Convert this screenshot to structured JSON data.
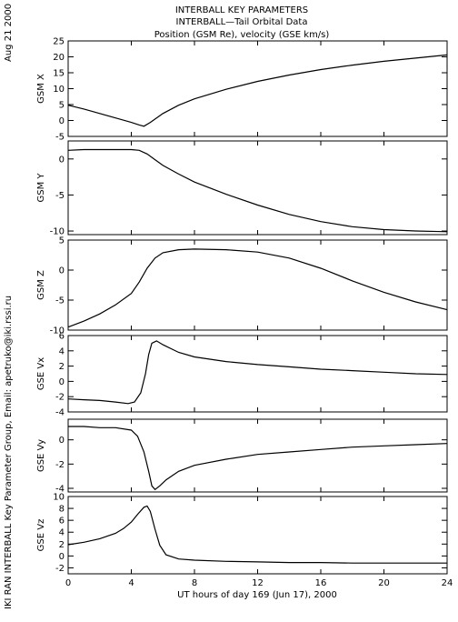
{
  "header": {
    "date_label": "Aug 21 2000",
    "title_line1": "INTERBALL KEY PARAMETERS",
    "title_line2": "INTERBALL—Tail Orbital Data",
    "title_line3": "Position (GSM Re), velocity (GSE km/s)"
  },
  "side_credit": "IKI RAN INTERBALL Key Parameter Group, Email: apetruko@iki.rssi.ru",
  "x_axis": {
    "label": "UT hours of day 169 (Jun 17), 2000",
    "range": [
      0,
      24
    ],
    "ticks": [
      0,
      4,
      8,
      12,
      16,
      20,
      24
    ],
    "tick_labels": [
      "0",
      "4",
      "8",
      "12",
      "16",
      "20",
      "24"
    ]
  },
  "chart_data": [
    {
      "type": "line",
      "ylabel": "GSM X",
      "ylim": [
        -5,
        25
      ],
      "yticks": [
        -5,
        0,
        5,
        10,
        15,
        20,
        25
      ],
      "ytick_labels": [
        "-5",
        "0",
        "5",
        "10",
        "15",
        "20",
        "25"
      ],
      "x": [
        0,
        1,
        2,
        3,
        4,
        4.5,
        4.8,
        5.2,
        6,
        7,
        8,
        10,
        12,
        14,
        16,
        18,
        20,
        22,
        24
      ],
      "values": [
        4.8,
        3.6,
        2.2,
        0.8,
        -0.6,
        -1.4,
        -1.8,
        -0.6,
        2.2,
        4.8,
        6.8,
        9.8,
        12.3,
        14.3,
        16.0,
        17.4,
        18.6,
        19.6,
        20.6
      ]
    },
    {
      "type": "line",
      "ylabel": "GSM Y",
      "ylim": [
        -10.5,
        2.5
      ],
      "yticks": [
        -10,
        -5,
        0
      ],
      "ytick_labels": [
        "-10",
        "-5",
        "0"
      ],
      "x": [
        0,
        1,
        2,
        3,
        4,
        4.5,
        5.0,
        5.5,
        6,
        7,
        8,
        10,
        12,
        14,
        16,
        18,
        20,
        22,
        24
      ],
      "values": [
        1.2,
        1.3,
        1.3,
        1.3,
        1.3,
        1.2,
        0.7,
        -0.1,
        -0.9,
        -2.1,
        -3.2,
        -4.9,
        -6.4,
        -7.7,
        -8.7,
        -9.4,
        -9.8,
        -10.0,
        -10.1
      ]
    },
    {
      "type": "line",
      "ylabel": "GSM Z",
      "ylim": [
        -10,
        5
      ],
      "yticks": [
        -10,
        -5,
        0,
        5
      ],
      "ytick_labels": [
        "-10",
        "-5",
        "0",
        "5"
      ],
      "x": [
        0,
        1,
        2,
        3,
        4,
        4.5,
        5,
        5.5,
        6,
        7,
        8,
        10,
        12,
        14,
        16,
        18,
        20,
        22,
        24
      ],
      "values": [
        -9.5,
        -8.5,
        -7.3,
        -5.8,
        -3.9,
        -2.0,
        0.3,
        2.0,
        2.9,
        3.4,
        3.5,
        3.4,
        3.0,
        2.0,
        0.3,
        -1.8,
        -3.7,
        -5.3,
        -6.6
      ]
    },
    {
      "type": "line",
      "ylabel": "GSE Vx",
      "ylim": [
        -4,
        6
      ],
      "yticks": [
        -4,
        -2,
        0,
        2,
        4,
        6
      ],
      "ytick_labels": [
        "-4",
        "-2",
        "0",
        "2",
        "4",
        "6"
      ],
      "x": [
        0,
        1,
        2,
        3,
        3.8,
        4.2,
        4.6,
        4.9,
        5.1,
        5.3,
        5.6,
        6,
        7,
        8,
        10,
        12,
        14,
        16,
        18,
        20,
        22,
        24
      ],
      "values": [
        -2.3,
        -2.4,
        -2.5,
        -2.7,
        -2.9,
        -2.7,
        -1.5,
        1.0,
        3.5,
        5.0,
        5.3,
        4.8,
        3.8,
        3.2,
        2.6,
        2.2,
        1.9,
        1.6,
        1.4,
        1.2,
        1.0,
        0.9
      ]
    },
    {
      "type": "line",
      "ylabel": "GSE Vy",
      "ylim": [
        -4.3,
        1.7
      ],
      "yticks": [
        -4,
        -2,
        0
      ],
      "ytick_labels": [
        "-4",
        "-2",
        "0"
      ],
      "x": [
        0,
        1,
        2,
        3,
        4,
        4.4,
        4.8,
        5.1,
        5.3,
        5.5,
        5.8,
        6.2,
        7,
        8,
        10,
        12,
        14,
        16,
        18,
        20,
        22,
        24
      ],
      "values": [
        1.1,
        1.1,
        1.0,
        1.0,
        0.8,
        0.3,
        -1.0,
        -2.6,
        -3.8,
        -4.1,
        -3.8,
        -3.3,
        -2.6,
        -2.1,
        -1.6,
        -1.2,
        -1.0,
        -0.8,
        -0.6,
        -0.5,
        -0.4,
        -0.3
      ]
    },
    {
      "type": "line",
      "ylabel": "GSE Vz",
      "ylim": [
        -3,
        10
      ],
      "yticks": [
        -2,
        0,
        2,
        4,
        6,
        8,
        10
      ],
      "ytick_labels": [
        "-2",
        "0",
        "2",
        "4",
        "6",
        "8",
        "10"
      ],
      "x": [
        0,
        1,
        2,
        3,
        3.5,
        4,
        4.4,
        4.8,
        5.0,
        5.2,
        5.5,
        5.8,
        6.2,
        7,
        8,
        10,
        12,
        14,
        16,
        18,
        20,
        22,
        24
      ],
      "values": [
        1.9,
        2.3,
        2.9,
        3.8,
        4.6,
        5.7,
        7.0,
        8.2,
        8.4,
        7.5,
        4.5,
        1.8,
        0.2,
        -0.5,
        -0.7,
        -0.9,
        -1.0,
        -1.1,
        -1.1,
        -1.2,
        -1.2,
        -1.2,
        -1.2
      ]
    }
  ]
}
